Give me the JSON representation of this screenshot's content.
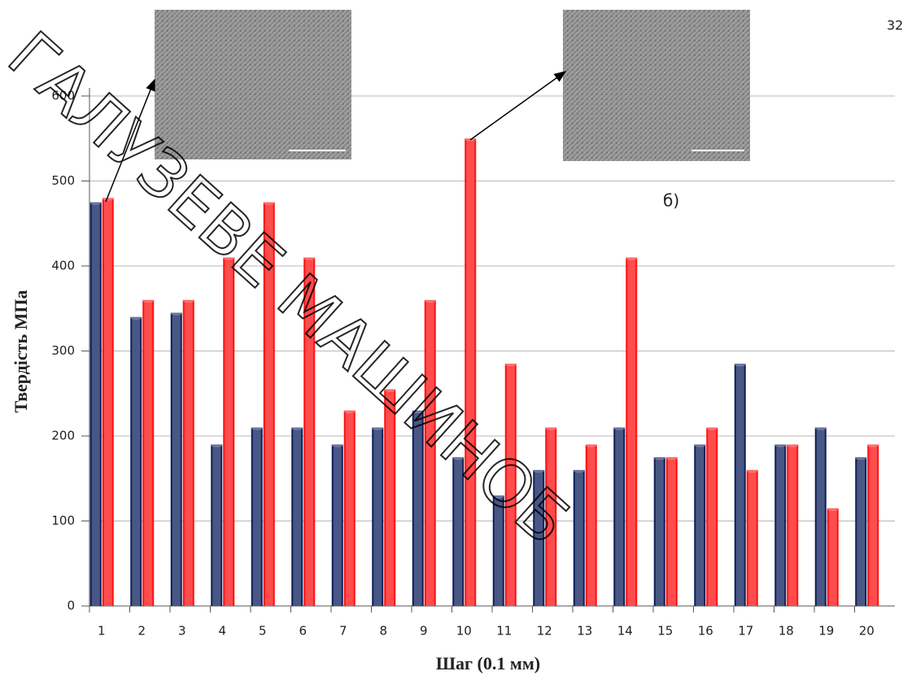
{
  "chart_data": {
    "type": "bar",
    "y_label": "Твердість МПа",
    "x_label": "Шаг (0.1 мм)",
    "annotations": [
      "б)",
      "32"
    ],
    "watermark": "ГАЛУЗЕВЕ МАШИНОБ",
    "categories": [
      "1",
      "2",
      "3",
      "4",
      "5",
      "6",
      "7",
      "8",
      "9",
      "10",
      "11",
      "12",
      "13",
      "14",
      "15",
      "16",
      "17",
      "18",
      "19",
      "20"
    ],
    "series": [
      {
        "color": "#0d1f5c",
        "values": [
          475,
          340,
          345,
          190,
          210,
          210,
          190,
          210,
          230,
          175,
          130,
          160,
          160,
          210,
          175,
          190,
          285,
          190,
          210,
          175
        ]
      },
      {
        "color": "#ff1010",
        "values": [
          480,
          360,
          360,
          410,
          475,
          410,
          230,
          255,
          360,
          550,
          285,
          210,
          190,
          410,
          175,
          210,
          160,
          190,
          115,
          190
        ]
      }
    ],
    "ylim": [
      0,
      600
    ],
    "yticks": [
      0,
      100,
      200,
      300,
      400,
      500,
      600
    ],
    "grid": true
  }
}
